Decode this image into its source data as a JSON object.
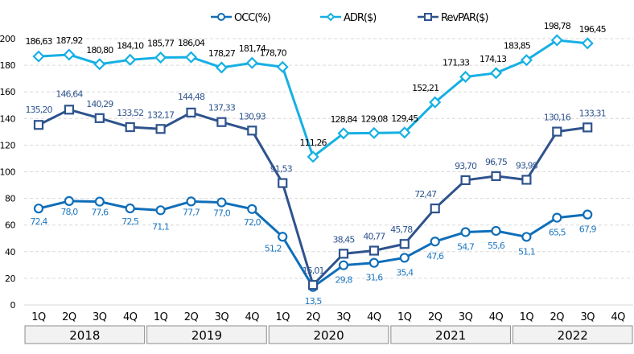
{
  "chart_data": {
    "type": "line",
    "title": "",
    "xlabel": "",
    "ylabel": "",
    "ylim": [
      0,
      200
    ],
    "yticks": [
      0,
      20,
      40,
      60,
      80,
      100,
      120,
      140,
      160,
      180,
      200
    ],
    "grid": true,
    "legend_position": "top-center",
    "categories": [
      "1Q",
      "2Q",
      "3Q",
      "4Q",
      "1Q",
      "2Q",
      "3Q",
      "4Q",
      "1Q",
      "2Q",
      "3Q",
      "4Q",
      "1Q",
      "2Q",
      "3Q",
      "4Q",
      "1Q",
      "2Q",
      "3Q",
      "4Q"
    ],
    "years": [
      {
        "label": "2018",
        "quarters": 4
      },
      {
        "label": "2019",
        "quarters": 4
      },
      {
        "label": "2020",
        "quarters": 4
      },
      {
        "label": "2021",
        "quarters": 4
      },
      {
        "label": "2022",
        "quarters": 4
      }
    ],
    "series": [
      {
        "name": "OCC(%)",
        "color": "#0f6eb9",
        "label_color": "#1f78c1",
        "marker": "circle",
        "values": [
          72.4,
          78.0,
          77.6,
          72.5,
          71.1,
          77.7,
          77.0,
          72.0,
          51.2,
          13.5,
          29.8,
          31.6,
          35.4,
          47.6,
          54.7,
          55.6,
          51.1,
          65.5,
          67.9,
          null
        ],
        "labels": [
          "72,4",
          "78,0",
          "77,6",
          "72,5",
          "71,1",
          "77,7",
          "77,0",
          "72,0",
          "51,2",
          "13,5",
          "29,8",
          "31,6",
          "35,4",
          "47,6",
          "54,7",
          "55,6",
          "51,1",
          "65,5",
          "67,9",
          ""
        ]
      },
      {
        "name": "ADR($)",
        "color": "#16b0e3",
        "label_color": "#000000",
        "marker": "diamond",
        "values": [
          186.63,
          187.92,
          180.8,
          184.1,
          185.77,
          186.04,
          178.27,
          181.74,
          178.7,
          111.26,
          128.84,
          129.08,
          129.45,
          152.21,
          171.33,
          174.13,
          183.85,
          198.78,
          196.45,
          null
        ],
        "labels": [
          "186,63",
          "187,92",
          "180,80",
          "184,10",
          "185,77",
          "186,04",
          "178,27",
          "181,74",
          "178,70",
          "111,26",
          "128,84",
          "129,08",
          "129,45",
          "152,21",
          "171,33",
          "174,13",
          "183,85",
          "198,78",
          "196,45",
          ""
        ]
      },
      {
        "name": "RevPAR($)",
        "color": "#2e538d",
        "label_color": "#2e538d",
        "marker": "square",
        "values": [
          135.2,
          146.64,
          140.29,
          133.52,
          132.17,
          144.48,
          137.33,
          130.93,
          91.53,
          15.01,
          38.45,
          40.77,
          45.78,
          72.47,
          93.7,
          96.75,
          93.98,
          130.16,
          133.31,
          null
        ],
        "labels": [
          "135,20",
          "146,64",
          "140,29",
          "133,52",
          "132,17",
          "144,48",
          "137,33",
          "130,93",
          "91,53",
          "15,01",
          "38,45",
          "40,77",
          "45,78",
          "72,47",
          "93,70",
          "96,75",
          "93,98",
          "130,16",
          "133,31",
          ""
        ]
      }
    ]
  }
}
